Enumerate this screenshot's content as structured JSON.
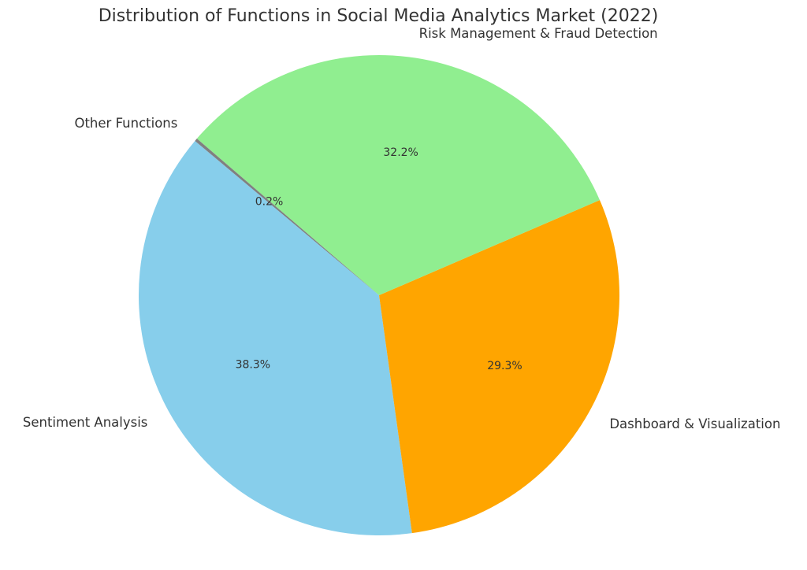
{
  "chart_data": {
    "type": "pie",
    "title": "Distribution of Functions in Social Media Analytics Market (2022)",
    "categories": [
      "Sentiment Analysis",
      "Dashboard & Visualization",
      "Risk Management & Fraud Detection",
      "Other Functions"
    ],
    "values": [
      38.3,
      29.3,
      32.2,
      0.2
    ],
    "value_labels": [
      "38.3%",
      "29.3%",
      "32.2%",
      "0.2%"
    ],
    "colors": [
      "#87ceeb",
      "#ffa500",
      "#90ee90",
      "#808080"
    ]
  }
}
